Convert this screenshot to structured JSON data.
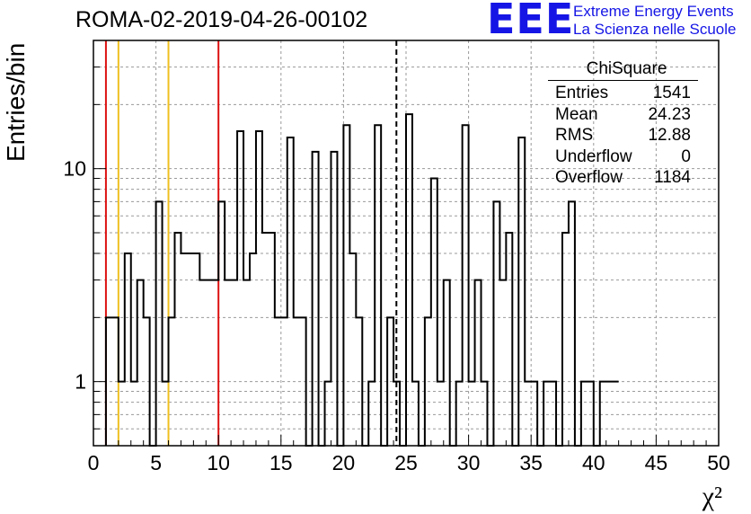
{
  "title": "ROMA-02-2019-04-26-00102",
  "logo": {
    "mark": "EEE",
    "line1": "Extreme Energy Events",
    "line2": "La Scienza nelle Scuole"
  },
  "stats": {
    "title": "ChiSquare",
    "rows": [
      {
        "label": "Entries",
        "value": "1541"
      },
      {
        "label": "Mean",
        "value": "24.23"
      },
      {
        "label": "RMS",
        "value": "12.88"
      },
      {
        "label": "Underflow",
        "value": "0"
      },
      {
        "label": "Overflow",
        "value": "1184"
      }
    ]
  },
  "colors": {
    "histogram": "#000000",
    "red_line": "#dd1111",
    "yellow_line": "#f0c020",
    "grid": "#9a9a9a",
    "logo": "#1515e6"
  },
  "chart_data": {
    "type": "bar",
    "histogram_step": true,
    "xlabel": "χ²",
    "ylabel": "Entries/bin",
    "xlim": [
      0,
      50
    ],
    "ylim": [
      0.5,
      40
    ],
    "yscale": "log",
    "grid": true,
    "x_ticks": [
      0,
      5,
      10,
      15,
      20,
      25,
      30,
      35,
      40,
      45,
      50
    ],
    "y_ticks": [
      {
        "value": 1,
        "label": "1"
      },
      {
        "value": 10,
        "label": "10"
      }
    ],
    "bin_width": 0.5,
    "bin_edges_start": 1,
    "bin_values": [
      2,
      2,
      1,
      4,
      1,
      3,
      2,
      0,
      7,
      1,
      2,
      5,
      4,
      4,
      4,
      3,
      3,
      3,
      7,
      3,
      3,
      15,
      3,
      4,
      15,
      5,
      5,
      2,
      2,
      14,
      2,
      2,
      0,
      12,
      0,
      1,
      12,
      0,
      16,
      4,
      2,
      0,
      1,
      16,
      0,
      2,
      1,
      0,
      18,
      1,
      0,
      2,
      9,
      1,
      3,
      0,
      1,
      16,
      1,
      3,
      1,
      0,
      7,
      3,
      5,
      0,
      14,
      1,
      1,
      0,
      1,
      1,
      0,
      5,
      7,
      0,
      1,
      1,
      0,
      1,
      1,
      1
    ],
    "vertical_lines": [
      {
        "x": 1,
        "color": "red",
        "style": "solid"
      },
      {
        "x": 10,
        "color": "red",
        "style": "solid"
      },
      {
        "x": 2,
        "color": "yellow",
        "style": "solid"
      },
      {
        "x": 6,
        "color": "yellow",
        "style": "solid"
      },
      {
        "x": 24.23,
        "color": "black",
        "style": "dashed"
      }
    ]
  }
}
